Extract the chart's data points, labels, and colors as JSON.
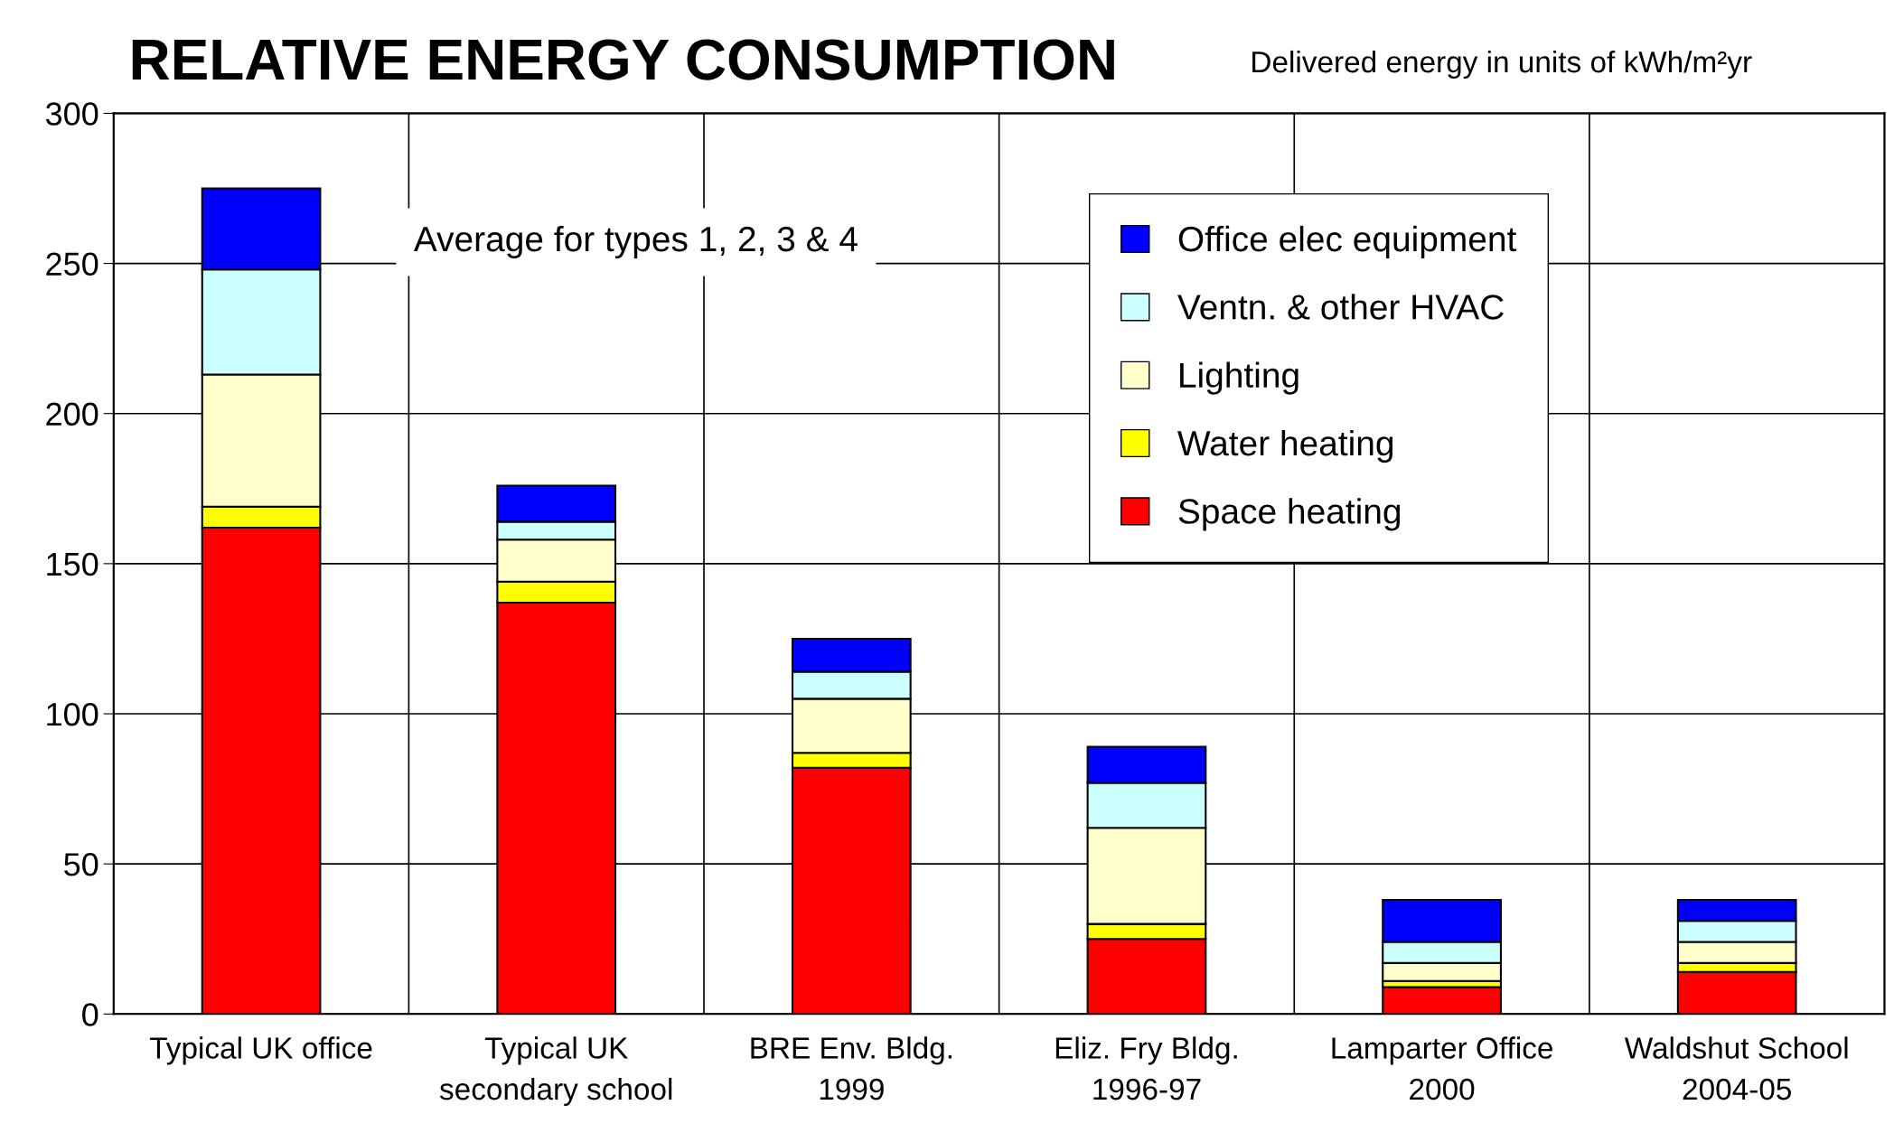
{
  "chart_data": {
    "type": "bar",
    "stacked": true,
    "title": "RELATIVE ENERGY CONSUMPTION",
    "subtitle": "Delivered energy in units of kWh/m²yr",
    "categories": [
      "Typical UK office",
      "Typical UK\nsecondary school",
      "BRE Env. Bldg.\n1999",
      "Eliz. Fry Bldg.\n1996-97",
      "Lamparter Office\n2000",
      "Waldshut School\n2004-05"
    ],
    "series": [
      {
        "name": "Space heating",
        "color": "#ff0000",
        "values": [
          162,
          137,
          82,
          25,
          9,
          14
        ]
      },
      {
        "name": "Water heating",
        "color": "#ffff00",
        "values": [
          7,
          7,
          5,
          5,
          2,
          3
        ]
      },
      {
        "name": "Lighting",
        "color": "#ffffcc",
        "values": [
          44,
          14,
          18,
          32,
          6,
          7
        ]
      },
      {
        "name": "Ventn. & other HVAC",
        "color": "#ccffff",
        "values": [
          35,
          6,
          9,
          15,
          7,
          7
        ]
      },
      {
        "name": "Office elec equipment",
        "color": "#0000ff",
        "values": [
          27,
          12,
          11,
          12,
          14,
          7
        ]
      }
    ],
    "ylim": [
      0,
      300
    ],
    "yticks": [
      0,
      50,
      100,
      150,
      200,
      250,
      300
    ],
    "grid": true,
    "legend": "top right",
    "annotations": [
      "Average for types 1, 2, 3 & 4"
    ]
  }
}
